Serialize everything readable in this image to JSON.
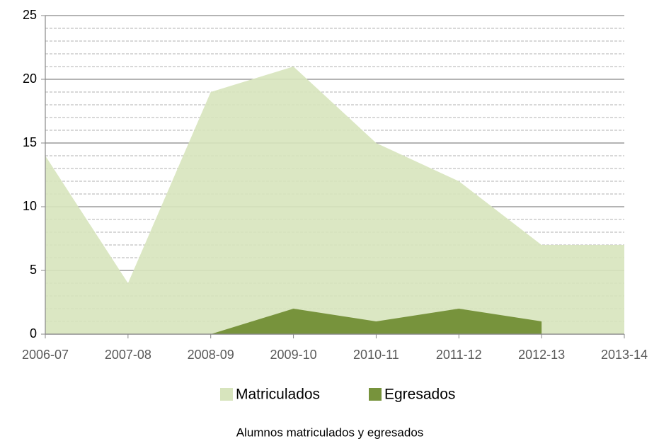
{
  "chart_data": {
    "type": "area",
    "title": "Alumnos matriculados y egresados",
    "categories": [
      "2006-07",
      "2007-08",
      "2008-09",
      "2009-10",
      "2010-11",
      "2011-12",
      "2012-13",
      "2013-14"
    ],
    "series": [
      {
        "name": "Matriculados",
        "color": "#d7e4bd",
        "values": [
          14,
          4,
          19,
          21,
          15,
          12,
          7,
          7
        ]
      },
      {
        "name": "Egresados",
        "color": "#77933c",
        "values": [
          null,
          null,
          0,
          2,
          1,
          2,
          1,
          null
        ]
      }
    ],
    "ylim": [
      0,
      25
    ],
    "yticks": [
      0,
      5,
      10,
      15,
      20,
      25
    ],
    "minor_yticks": [
      1,
      2,
      3,
      4,
      6,
      7,
      8,
      9,
      11,
      12,
      13,
      14,
      16,
      17,
      18,
      19,
      21,
      22,
      23,
      24
    ],
    "grid": true,
    "legend": "bottom"
  }
}
